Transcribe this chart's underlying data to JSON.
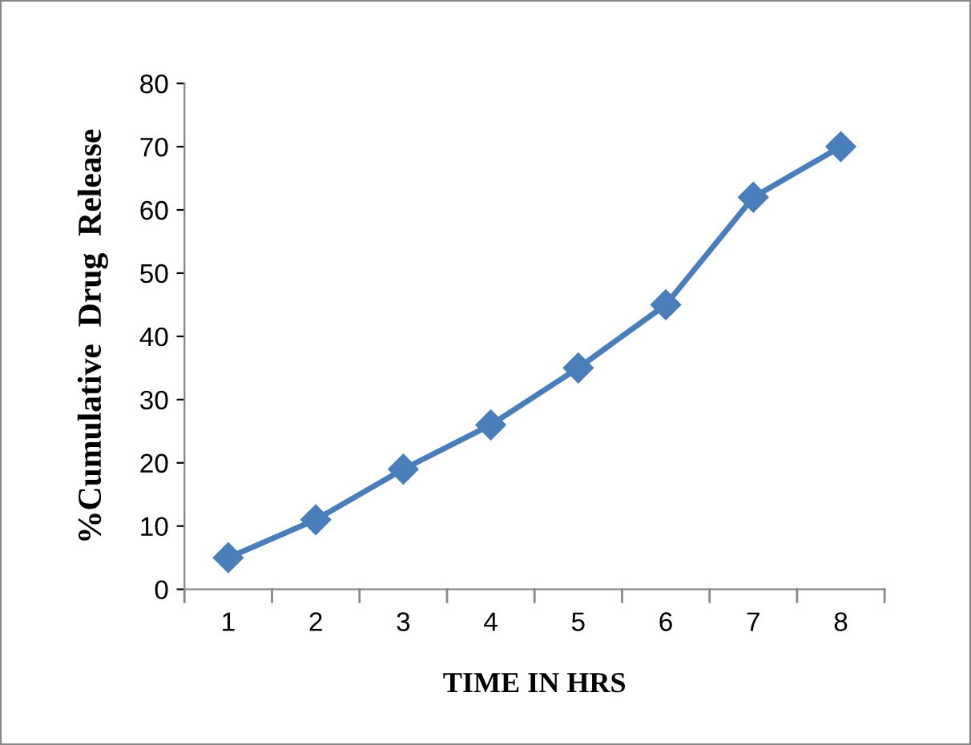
{
  "chart_data": {
    "type": "line",
    "xlabel": "TIME IN HRS",
    "ylabel": "%Cumulative  Drug  Release",
    "categories": [
      "1",
      "2",
      "3",
      "4",
      "5",
      "6",
      "7",
      "8"
    ],
    "series": [
      {
        "color": "#4a7ebb",
        "values": [
          5,
          11,
          19,
          26,
          35,
          45,
          62,
          70
        ]
      }
    ],
    "ylim": [
      0,
      80
    ],
    "yticks": [
      0,
      10,
      20,
      30,
      40,
      50,
      60,
      70,
      80
    ],
    "grid": false,
    "legend": false,
    "marker": "diamond",
    "line_style": "solid"
  }
}
